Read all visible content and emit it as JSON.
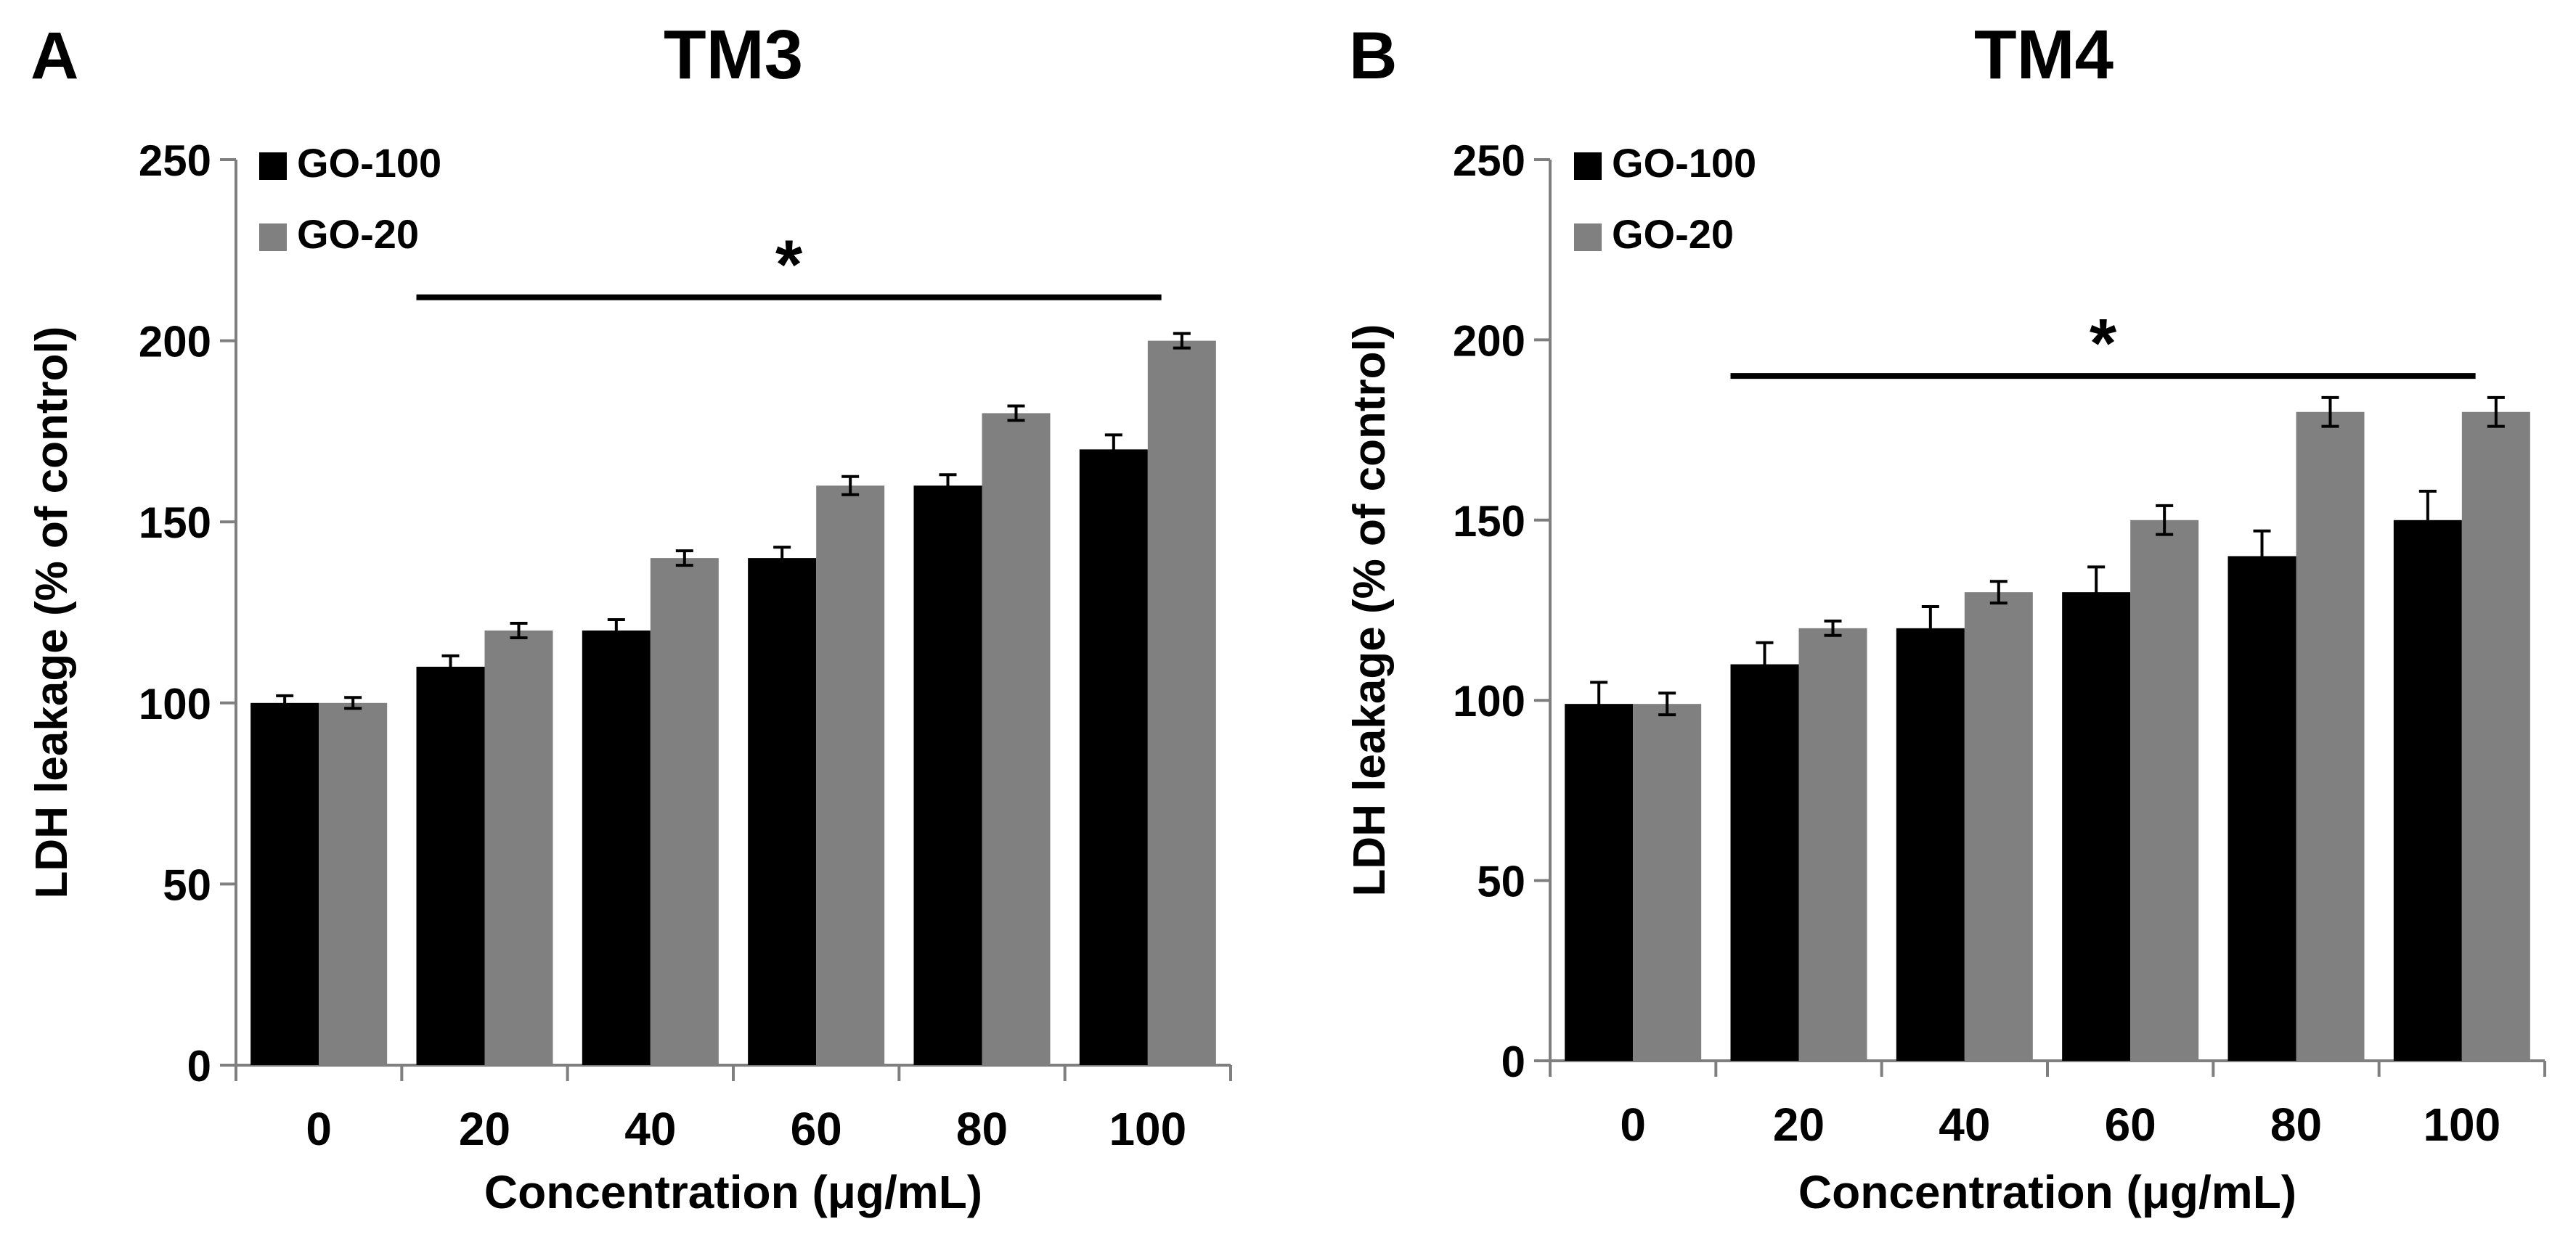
{
  "figure": {
    "colors": {
      "series_dark": "#000000",
      "series_light": "#808080",
      "axis": "#7f7f7f",
      "text": "#000000"
    }
  },
  "chart_data": [
    {
      "type": "bar",
      "panel_label": "A",
      "title": "TM3",
      "xlabel": "Concentration (μg/mL)",
      "ylabel": "LDH leakage (% of control)",
      "categories": [
        "0",
        "20",
        "40",
        "60",
        "80",
        "100"
      ],
      "ylim": [
        0,
        250
      ],
      "yticks": [
        0,
        50,
        100,
        150,
        200,
        250
      ],
      "legend_position": "top-left",
      "grid": false,
      "series": [
        {
          "name": "GO-100",
          "color": "#000000",
          "values": [
            100,
            110,
            120,
            140,
            160,
            170
          ],
          "errors": [
            2,
            3,
            3,
            3,
            3,
            4
          ]
        },
        {
          "name": "GO-20",
          "color": "#808080",
          "values": [
            100,
            120,
            140,
            160,
            180,
            200
          ],
          "errors": [
            1.5,
            2,
            2,
            2.5,
            2,
            2
          ]
        }
      ],
      "significance": {
        "label": "*",
        "from_category": "20",
        "to_category": "100",
        "y": 212
      }
    },
    {
      "type": "bar",
      "panel_label": "B",
      "title": "TM4",
      "xlabel": "Concentration (μg/mL)",
      "ylabel": "LDH leakage (% of control)",
      "categories": [
        "0",
        "20",
        "40",
        "60",
        "80",
        "100"
      ],
      "ylim": [
        0,
        250
      ],
      "yticks": [
        0,
        50,
        100,
        150,
        200,
        250
      ],
      "legend_position": "top-left",
      "grid": false,
      "series": [
        {
          "name": "GO-100",
          "color": "#000000",
          "values": [
            99,
            110,
            120,
            130,
            140,
            150
          ],
          "errors": [
            6,
            6,
            6,
            7,
            7,
            8
          ]
        },
        {
          "name": "GO-20",
          "color": "#808080",
          "values": [
            99,
            120,
            130,
            150,
            180,
            180
          ],
          "errors": [
            3,
            2,
            3,
            4,
            4,
            4
          ]
        }
      ],
      "significance": {
        "label": "*",
        "from_category": "20",
        "to_category": "100",
        "y": 190
      }
    }
  ]
}
